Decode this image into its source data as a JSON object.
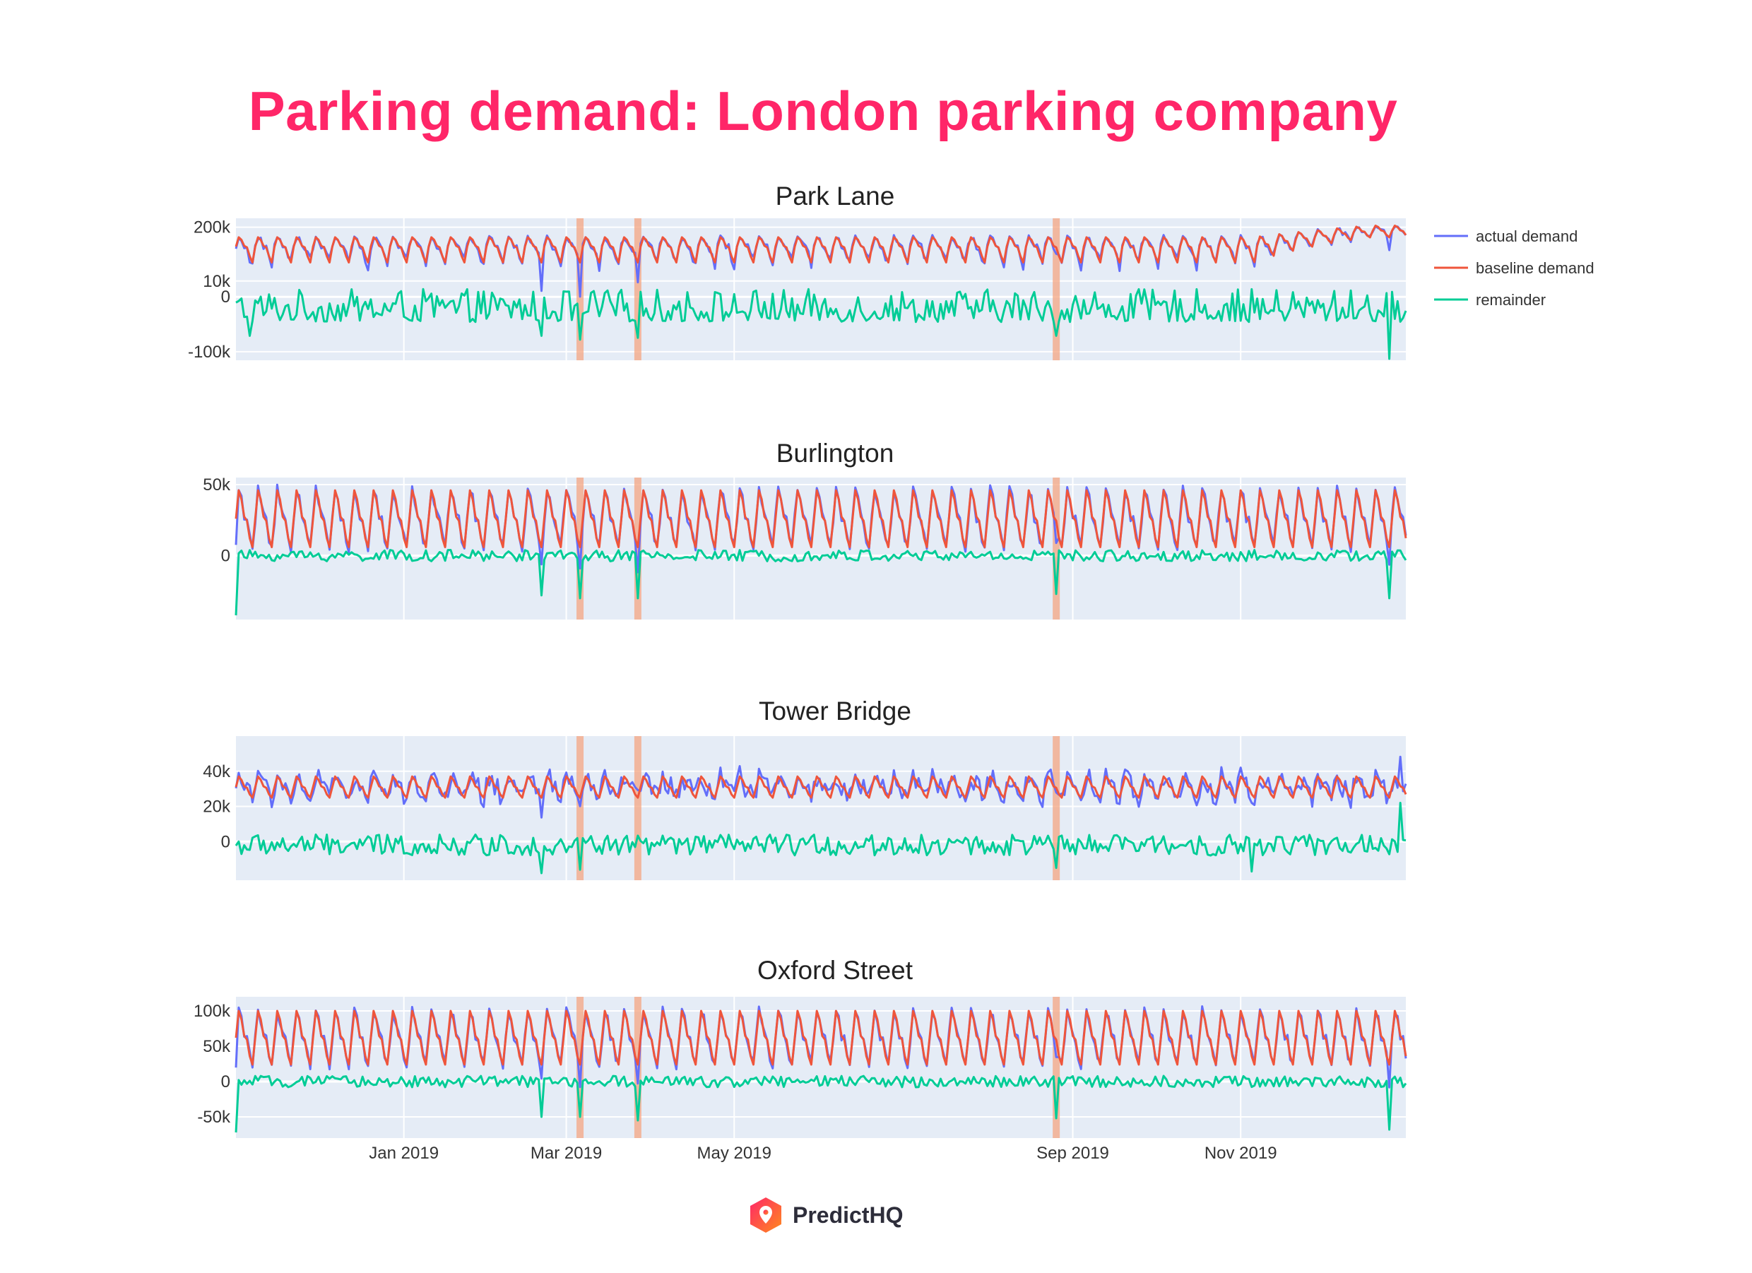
{
  "title": "Parking demand: London parking company",
  "colors": {
    "title": "#ff2668",
    "plot_bg": "#e5ecf6",
    "grid": "#ffffff",
    "actual": "#636efa",
    "baseline": "#ef553b",
    "remainder": "#00cc96",
    "event_band": "#f4a582"
  },
  "footer": {
    "brand": "PredictHQ",
    "icon": "predicthq-location-pin-icon"
  },
  "chart_data": {
    "type": "line",
    "shared_x": {
      "start": "2018-11-01",
      "end": "2019-12-31",
      "tick_labels": [
        "Jan 2019",
        "Mar 2019",
        "May 2019",
        "Sep 2019",
        "Nov 2019"
      ],
      "tick_dates": [
        "2019-01-01",
        "2019-03-01",
        "2019-05-01",
        "2019-09-01",
        "2019-11-01"
      ]
    },
    "event_bands": [
      "2019-03-06",
      "2019-03-27",
      "2019-08-26"
    ],
    "legend": {
      "placement": "right",
      "entries": [
        "actual demand",
        "baseline demand",
        "remainder"
      ]
    },
    "grid": true,
    "series_names": [
      "actual demand",
      "baseline demand",
      "remainder"
    ],
    "panels": [
      {
        "title": "Park Lane",
        "y_ticks": [
          {
            "value": 200000,
            "label": "200k"
          },
          {
            "value": 10000,
            "label": "10k"
          },
          {
            "value": 0,
            "label": "0"
          },
          {
            "value": -100000,
            "label": "-100k"
          }
        ],
        "y_scale": "symmetric-log",
        "ylim": [
          -150000,
          300000
        ],
        "baseline_level": 80000,
        "weekly_amplitude": 45000,
        "actual_noise": 14000,
        "remainder_level": -8000,
        "remainder_noise": 12000,
        "late_year_rise": 90000,
        "remainder_spikes": [
          {
            "date": "2018-11-06",
            "value": -45000
          },
          {
            "date": "2019-02-20",
            "value": -45000
          },
          {
            "date": "2019-03-06",
            "value": -55000
          },
          {
            "date": "2019-03-27",
            "value": -50000
          },
          {
            "date": "2019-08-26",
            "value": -45000
          },
          {
            "date": "2019-12-25",
            "value": -140000
          }
        ]
      },
      {
        "title": "Burlington",
        "y_ticks": [
          {
            "value": 50000,
            "label": "50k"
          },
          {
            "value": 0,
            "label": "0"
          }
        ],
        "y_scale": "linear",
        "ylim": [
          -45000,
          55000
        ],
        "baseline_level": 26000,
        "weekly_amplitude": 20000,
        "actual_noise": 4000,
        "remainder_level": 0,
        "remainder_noise": 4000,
        "late_year_rise": 0,
        "remainder_spikes": [
          {
            "date": "2018-11-01",
            "value": -42000
          },
          {
            "date": "2019-02-20",
            "value": -28000
          },
          {
            "date": "2019-03-06",
            "value": -30000
          },
          {
            "date": "2019-03-27",
            "value": -30000
          },
          {
            "date": "2019-08-26",
            "value": -27000
          },
          {
            "date": "2019-12-25",
            "value": -30000
          }
        ]
      },
      {
        "title": "Tower Bridge",
        "y_ticks": [
          {
            "value": 40000,
            "label": "40k"
          },
          {
            "value": 20000,
            "label": "20k"
          },
          {
            "value": 0,
            "label": "0"
          }
        ],
        "y_scale": "linear",
        "ylim": [
          -22000,
          60000
        ],
        "baseline_level": 31000,
        "weekly_amplitude": 6000,
        "actual_noise": 6000,
        "remainder_level": -2000,
        "remainder_noise": 6000,
        "late_year_rise": 0,
        "remainder_spikes": [
          {
            "date": "2019-02-20",
            "value": -18000
          },
          {
            "date": "2019-03-06",
            "value": -16000
          },
          {
            "date": "2019-08-26",
            "value": -15000
          },
          {
            "date": "2019-11-05",
            "value": -17000
          },
          {
            "date": "2019-12-29",
            "value": 22000
          }
        ]
      },
      {
        "title": "Oxford Street",
        "y_ticks": [
          {
            "value": 100000,
            "label": "100k"
          },
          {
            "value": 50000,
            "label": "50k"
          },
          {
            "value": 0,
            "label": "0"
          },
          {
            "value": -50000,
            "label": "-50k"
          }
        ],
        "y_scale": "linear",
        "ylim": [
          -80000,
          120000
        ],
        "baseline_level": 62000,
        "weekly_amplitude": 38000,
        "actual_noise": 7000,
        "remainder_level": 0,
        "remainder_noise": 8000,
        "late_year_rise": 0,
        "remainder_spikes": [
          {
            "date": "2018-11-01",
            "value": -72000
          },
          {
            "date": "2019-02-20",
            "value": -50000
          },
          {
            "date": "2019-03-06",
            "value": -50000
          },
          {
            "date": "2019-03-27",
            "value": -55000
          },
          {
            "date": "2019-08-26",
            "value": -52000
          },
          {
            "date": "2019-12-25",
            "value": -68000
          }
        ]
      }
    ]
  }
}
